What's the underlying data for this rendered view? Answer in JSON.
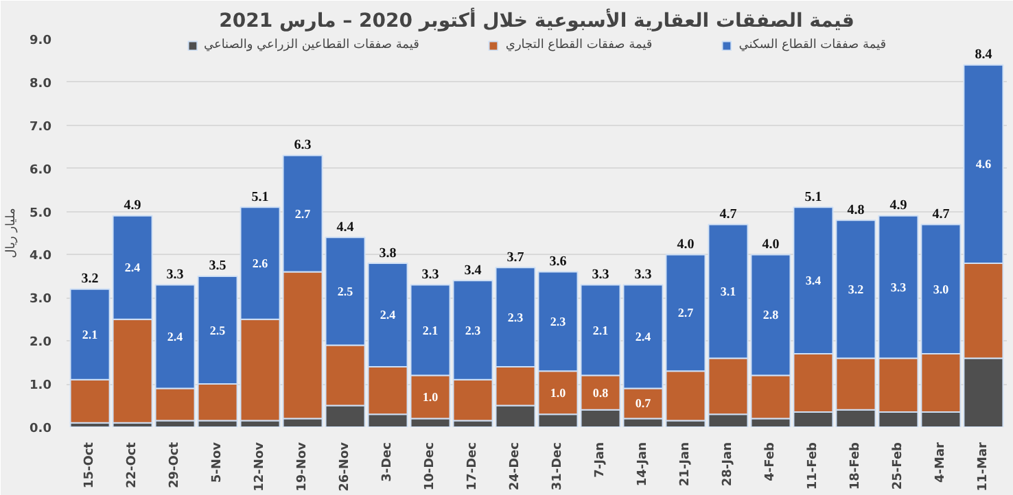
{
  "chart_data": {
    "type": "bar",
    "title": "قيمة الصفقات العقارية الأسبوعية خلال أكتوبر 2020 – مارس 2021",
    "ylabel": "مليار ريال",
    "categories": [
      "15-Oct",
      "22-Oct",
      "29-Oct",
      "5-Nov",
      "12-Nov",
      "19-Nov",
      "26-Nov",
      "3-Dec",
      "10-Dec",
      "17-Dec",
      "24-Dec",
      "31-Dec",
      "7-Jan",
      "14-Jan",
      "21-Jan",
      "28-Jan",
      "4-Feb",
      "11-Feb",
      "18-Feb",
      "25-Feb",
      "4-Mar",
      "11-Mar"
    ],
    "stacked": true,
    "legend": "top",
    "grid": "y",
    "ylim": [
      0,
      9
    ],
    "yticks": [
      {
        "value": 0,
        "label": "0.0"
      },
      {
        "value": 1,
        "label": "1.0"
      },
      {
        "value": 2,
        "label": "2.0"
      },
      {
        "value": 3,
        "label": "3.0"
      },
      {
        "value": 4,
        "label": "4.0"
      },
      {
        "value": 5,
        "label": "5.0"
      },
      {
        "value": 6,
        "label": "6.0"
      },
      {
        "value": 7,
        "label": "7.0"
      },
      {
        "value": 8,
        "label": "8.0"
      },
      {
        "value": 9,
        "label": "9.0"
      }
    ],
    "series": [
      {
        "name": "قيمة صفقات القطاعين الزراعي والصناعي",
        "color": "#4f4f4f",
        "values": [
          0.1,
          0.1,
          0.15,
          0.15,
          0.15,
          0.2,
          0.5,
          0.3,
          0.2,
          0.15,
          0.5,
          0.3,
          0.4,
          0.2,
          0.15,
          0.3,
          0.2,
          0.35,
          0.4,
          0.35,
          0.35,
          1.6
        ]
      },
      {
        "name": "قيمة صفقات القطاع التجاري",
        "color": "#c0622f",
        "values": [
          1.0,
          2.4,
          0.75,
          0.85,
          2.35,
          3.4,
          1.4,
          1.1,
          1.0,
          0.95,
          0.9,
          1.0,
          0.8,
          0.7,
          1.15,
          1.3,
          1.0,
          1.35,
          1.2,
          1.25,
          1.35,
          2.2
        ],
        "value_labels": [
          null,
          null,
          null,
          null,
          null,
          null,
          null,
          null,
          "1.0",
          null,
          null,
          "1.0",
          "0.8",
          "0.7",
          null,
          null,
          null,
          null,
          null,
          null,
          null,
          null
        ]
      },
      {
        "name": "قيمة صفقات القطاع السكني",
        "color": "#3b6fc1",
        "values": [
          2.1,
          2.4,
          2.4,
          2.5,
          2.6,
          2.7,
          2.5,
          2.4,
          2.1,
          2.3,
          2.3,
          2.3,
          2.1,
          2.4,
          2.7,
          3.1,
          2.8,
          3.4,
          3.2,
          3.3,
          3.0,
          4.6
        ],
        "value_labels": [
          "2.1",
          "2.4",
          "2.4",
          "2.5",
          "2.6",
          "2.7",
          "2.5",
          "2.4",
          "2.1",
          "2.3",
          "2.3",
          "2.3",
          "2.1",
          "2.4",
          "2.7",
          "3.1",
          "2.8",
          "3.4",
          "3.2",
          "3.3",
          "3.0",
          "4.6"
        ]
      }
    ],
    "totals": [
      "3.2",
      "4.9",
      "3.3",
      "3.5",
      "5.1",
      "6.3",
      "4.4",
      "3.8",
      "3.3",
      "3.4",
      "3.7",
      "3.6",
      "3.3",
      "3.3",
      "4.0",
      "4.7",
      "4.0",
      "5.1",
      "4.8",
      "4.9",
      "4.7",
      "8.4"
    ]
  }
}
